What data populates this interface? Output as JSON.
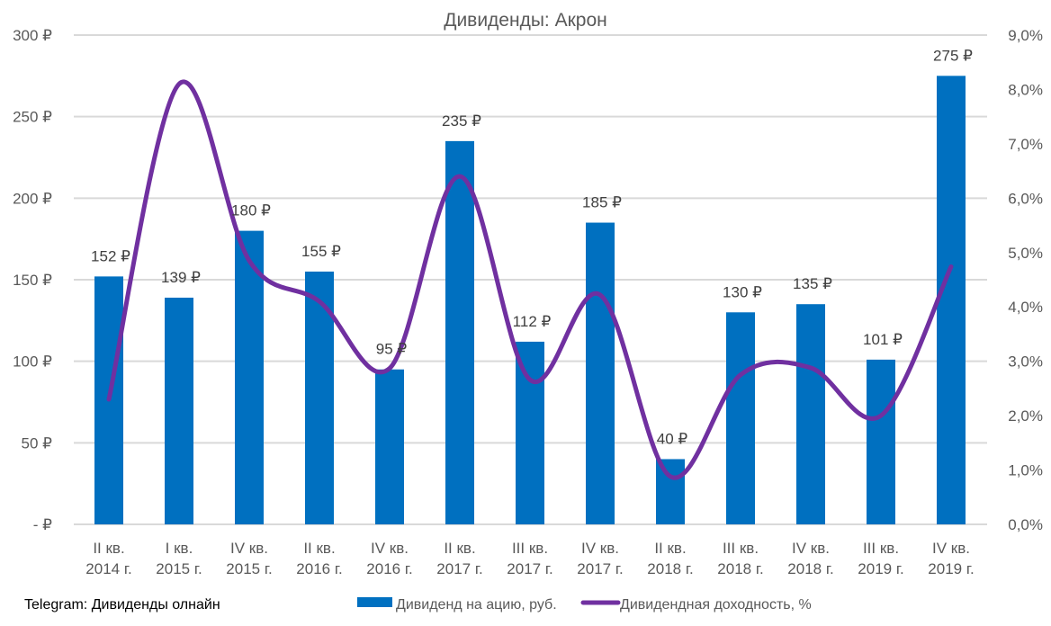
{
  "chart_data": {
    "type": "bar",
    "title": "Дивиденды: Акрон",
    "xlabel": "",
    "ylabel": "",
    "y2label": "",
    "categories": [
      [
        "II кв.",
        "2014  г."
      ],
      [
        "I кв.",
        "2015 г."
      ],
      [
        "IV кв.",
        "2015 г."
      ],
      [
        "II кв.",
        "2016  г."
      ],
      [
        "IV кв.",
        "2016 г."
      ],
      [
        "II кв.",
        "2017  г."
      ],
      [
        "III кв.",
        "2017 г."
      ],
      [
        "IV кв.",
        "2017 г."
      ],
      [
        "II кв.",
        "2018  г."
      ],
      [
        "III кв.",
        "2018 г."
      ],
      [
        "IV кв.",
        "2018 г."
      ],
      [
        "III кв.",
        "2019 г."
      ],
      [
        "IV кв.",
        "2019 г."
      ]
    ],
    "series": [
      {
        "name": "Дивиденд на ацию, руб.",
        "type": "bar",
        "axis": "left",
        "color": "#0070C0",
        "values": [
          152,
          139,
          180,
          155,
          95,
          235,
          112,
          185,
          40,
          130,
          135,
          101,
          275
        ],
        "data_labels": [
          "152 ₽",
          "139 ₽",
          "180 ₽",
          "155 ₽",
          "95 ₽",
          "235 ₽",
          "112 ₽",
          "185 ₽",
          "40 ₽",
          "130 ₽",
          "135 ₽",
          "101 ₽",
          "275 ₽"
        ]
      },
      {
        "name": "Дивидендная доходность, %",
        "type": "line",
        "smooth": true,
        "axis": "right",
        "color": "#7030A0",
        "values": [
          2.3,
          8.1,
          4.85,
          4.1,
          2.87,
          6.4,
          2.66,
          4.22,
          0.88,
          2.75,
          2.88,
          2.0,
          4.74
        ]
      }
    ],
    "ylim": [
      0,
      300
    ],
    "yticks": [
      0,
      50,
      100,
      150,
      200,
      250,
      300
    ],
    "ytick_labels": [
      "-   ₽",
      "50 ₽",
      "100 ₽",
      "150 ₽",
      "200 ₽",
      "250 ₽",
      "300 ₽"
    ],
    "y2lim": [
      0,
      9
    ],
    "y2ticks": [
      0,
      1,
      2,
      3,
      4,
      5,
      6,
      7,
      8,
      9
    ],
    "y2tick_labels": [
      "0,0%",
      "1,0%",
      "2,0%",
      "3,0%",
      "4,0%",
      "5,0%",
      "6,0%",
      "7,0%",
      "8,0%",
      "9,0%"
    ],
    "grid": true,
    "legend_position": "bottom"
  },
  "source_note": "Telegram: Дивиденды олнайн"
}
